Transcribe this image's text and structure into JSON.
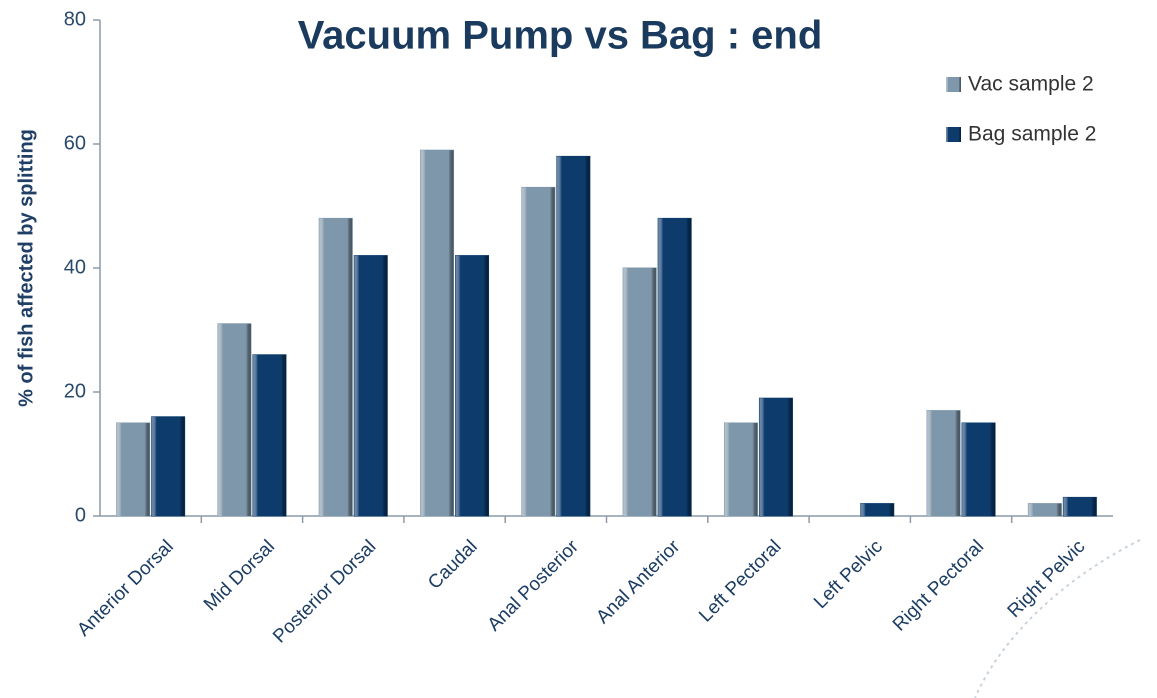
{
  "chart_data": {
    "type": "bar",
    "title": "Vacuum Pump vs Bag : end",
    "y_label": "% of fish affected by splitting",
    "categories": [
      "Anterior Dorsal",
      "Mid Dorsal",
      "Posterior Dorsal",
      "Caudal",
      "Anal Posterior",
      "Anal Anterior",
      "Left Pectoral",
      "Left Pelvic",
      "Right Pectoral",
      "Right Pelvic"
    ],
    "series": [
      {
        "name": "Vac sample 2",
        "color": "#7f97aa",
        "values": [
          15,
          31,
          48,
          59,
          53,
          40,
          15,
          0,
          17,
          2
        ]
      },
      {
        "name": "Bag sample 2",
        "color": "#0c3b6c",
        "values": [
          16,
          26,
          42,
          42,
          58,
          48,
          19,
          2,
          15,
          3
        ]
      }
    ],
    "ylim": [
      0,
      80
    ],
    "yticks": [
      0,
      20,
      40,
      60,
      80
    ],
    "legend": "upper right"
  }
}
